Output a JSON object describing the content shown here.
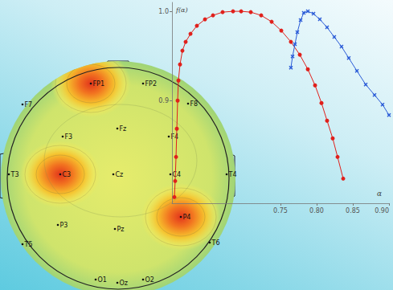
{
  "chart_data": {
    "type": "line",
    "x_label": "α",
    "y_label": "f(α)",
    "xlim": [
      0.6,
      0.9
    ],
    "ylim": [
      0.785,
      1.01
    ],
    "xticks": [
      0.75,
      {
        "value": 0.8,
        "label": "0.80"
      },
      0.85,
      {
        "value": 0.9,
        "label": "0.90"
      }
    ],
    "yticks": [
      0.9,
      {
        "value": 1,
        "label": "1.0"
      }
    ],
    "grid": false,
    "series": [
      {
        "color": "#e0201b",
        "marker": "circle",
        "x": [
          0.6033,
          0.6044,
          0.6056,
          0.6067,
          0.6078,
          0.6089,
          0.6111,
          0.6144,
          0.6189,
          0.6256,
          0.6344,
          0.6456,
          0.6567,
          0.67,
          0.6844,
          0.6956,
          0.7089,
          0.7233,
          0.7378,
          0.7511,
          0.7644,
          0.7767,
          0.7878,
          0.7978,
          0.8067,
          0.8144,
          0.8222,
          0.8289,
          0.8367
        ],
        "values": [
          0.7919,
          0.8099,
          0.8369,
          0.8685,
          0.9,
          0.9225,
          0.9405,
          0.9559,
          0.9658,
          0.9748,
          0.9838,
          0.991,
          0.9955,
          0.9991,
          1.0,
          1.0,
          0.9991,
          0.9955,
          0.9883,
          0.9784,
          0.9658,
          0.9514,
          0.9351,
          0.9171,
          0.8973,
          0.8775,
          0.8577,
          0.8369,
          0.8126
        ]
      },
      {
        "color": "#2a5bd7",
        "marker": "x",
        "x": [
          0.7644,
          0.7667,
          0.77,
          0.7733,
          0.7778,
          0.7822,
          0.7878,
          0.7956,
          0.8044,
          0.8144,
          0.8244,
          0.8344,
          0.8444,
          0.8556,
          0.8678,
          0.88,
          0.8911,
          0.9
        ],
        "values": [
          0.9369,
          0.9495,
          0.9631,
          0.9766,
          0.9901,
          0.9982,
          1.0,
          0.9973,
          0.991,
          0.982,
          0.9712,
          0.9604,
          0.9477,
          0.9333,
          0.918,
          0.9063,
          0.8955,
          0.8838
        ]
      }
    ]
  },
  "head_map": {
    "electrodes": [
      "FP1",
      "FP2",
      "F7",
      "F3",
      "Fz",
      "F4",
      "F8",
      "T3",
      "C3",
      "Cz",
      "C4",
      "T4",
      "P3",
      "Pz",
      "T5",
      "P4",
      "T6",
      "O1",
      "Oz",
      "O2"
    ],
    "hotspots": [
      "FP1",
      "C3",
      "P4"
    ]
  }
}
